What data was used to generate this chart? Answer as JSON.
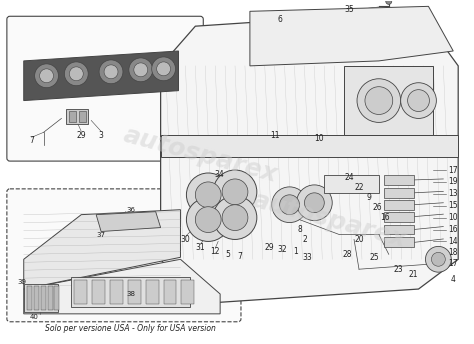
{
  "bg_color": "#ffffff",
  "line_color": "#444444",
  "light_line": "#999999",
  "text_color": "#222222",
  "watermark_color": "#cccccc",
  "watermark_text": "autosparex",
  "caption": "Solo per versione USA - Only for USA version",
  "figsize": [
    4.74,
    3.44
  ],
  "dpi": 100
}
